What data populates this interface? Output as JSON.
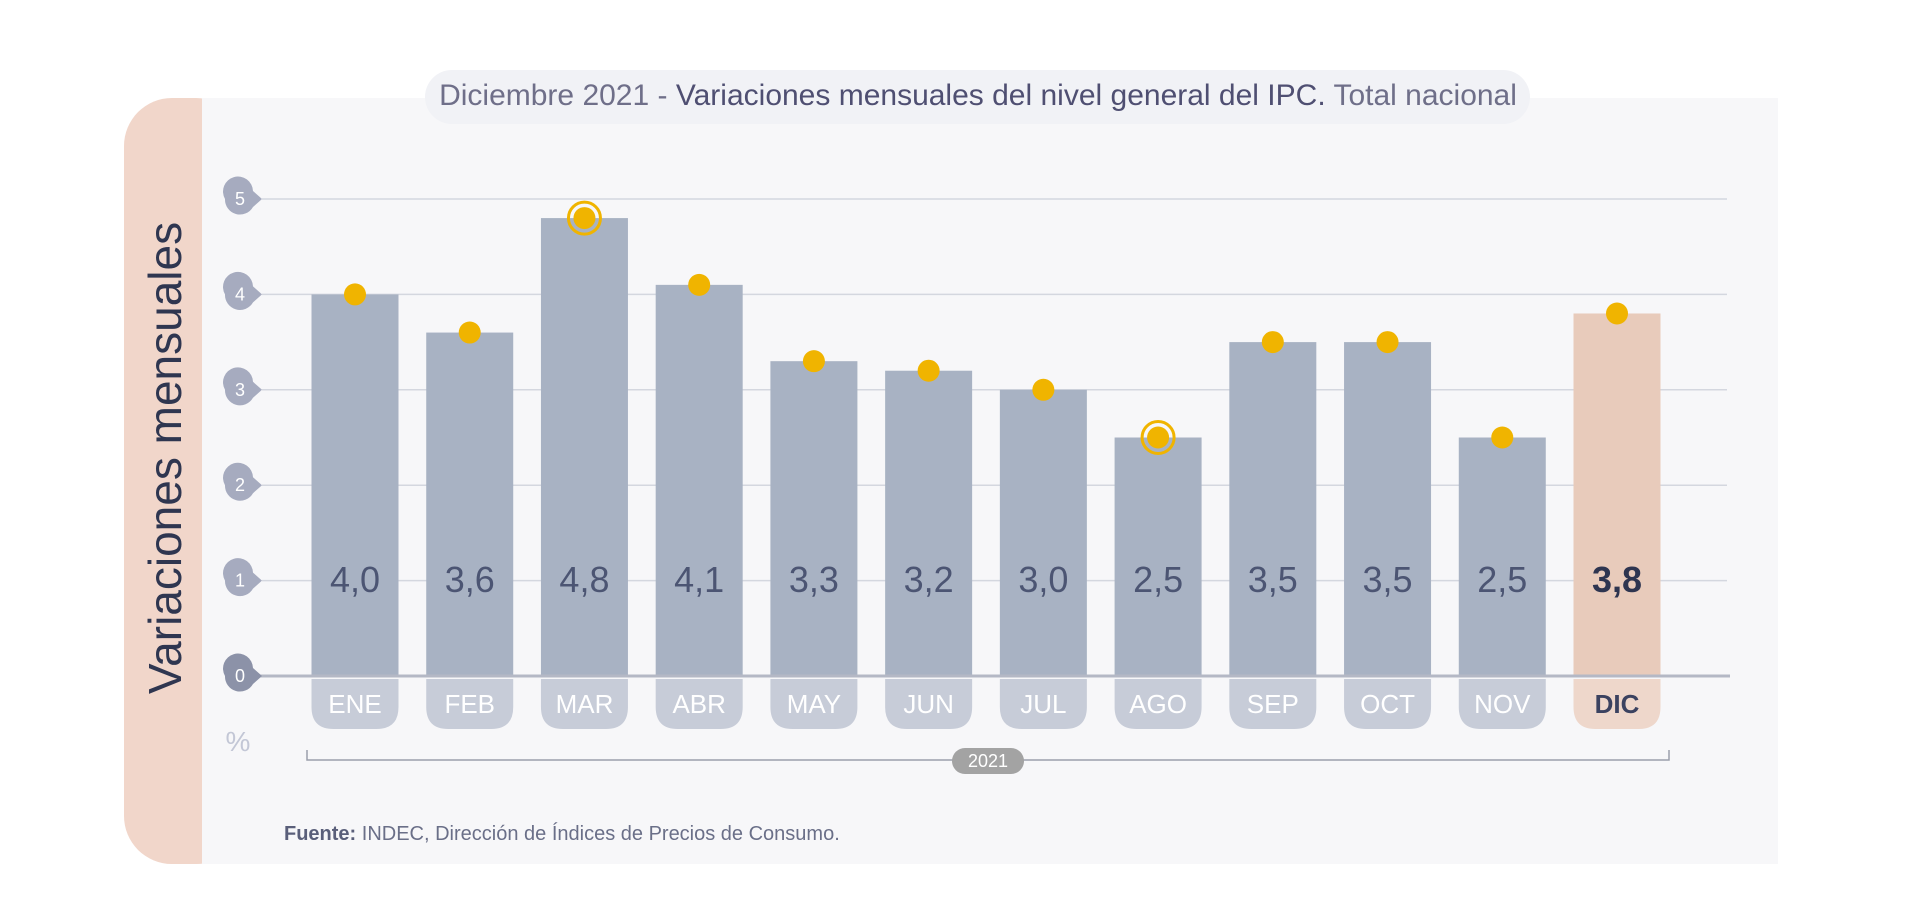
{
  "title": {
    "prefix": "Diciembre 2021 - ",
    "bold": "Variaciones mensuales del nivel general del IPC.",
    "suffix": " Total nacional"
  },
  "source": {
    "label": "Fuente:",
    "text": " INDEC, Dirección de Índices de Precios de Consumo."
  },
  "colors": {
    "bar": "#a8b2c3",
    "bar_highlight": "#e8cbbb",
    "month_pill": "#c7ccd8",
    "month_pill_highlight": "#eed7cb",
    "dot": "#f0b400",
    "side_band": "#f1d6ca",
    "panel": "#f7f7f9",
    "tick_badge": "#a6abbf",
    "zero_badge": "#8c92a8",
    "year_pill": "#a3a3a3"
  },
  "chart_data": {
    "type": "bar",
    "ylabel": "Variaciones mensuales",
    "unit": "%",
    "ylim": [
      0,
      5
    ],
    "yticks": [
      0,
      1,
      2,
      3,
      4,
      5
    ],
    "grid": true,
    "x_group_label": "2021",
    "categories": [
      "ENE",
      "FEB",
      "MAR",
      "ABR",
      "MAY",
      "JUN",
      "JUL",
      "AGO",
      "SEP",
      "OCT",
      "NOV",
      "DIC"
    ],
    "values": [
      4.0,
      3.6,
      4.8,
      4.1,
      3.3,
      3.2,
      3.0,
      2.5,
      3.5,
      3.5,
      2.5,
      3.8
    ],
    "value_labels": [
      "4,0",
      "3,6",
      "4,8",
      "4,1",
      "3,3",
      "3,2",
      "3,0",
      "2,5",
      "3,5",
      "3,5",
      "2,5",
      "3,8"
    ],
    "highlight_index": 11,
    "ringed_markers": [
      "MAR",
      "AGO"
    ]
  }
}
